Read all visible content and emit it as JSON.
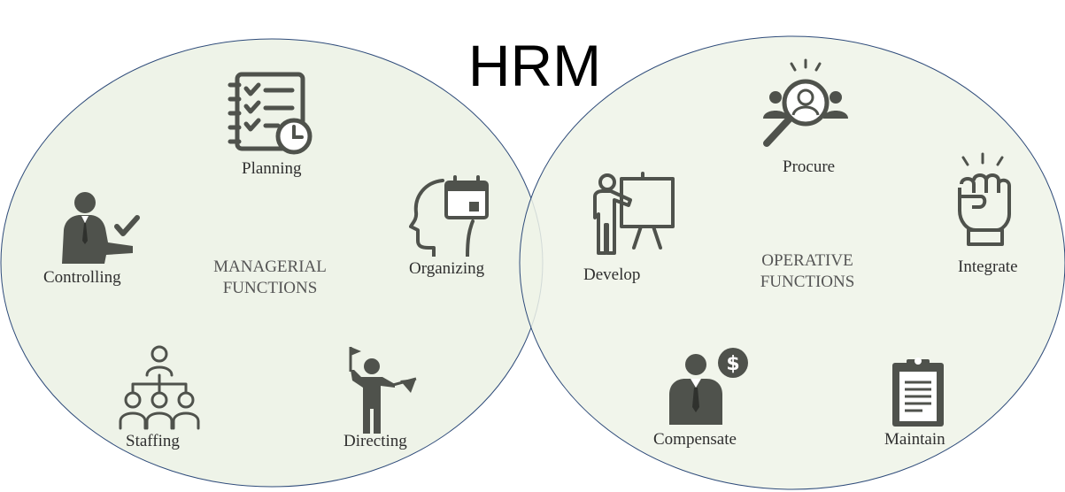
{
  "title": "HRM",
  "colors": {
    "fill": "#eef3e8",
    "stroke": "#2e4b7a",
    "icon": "#4f524c"
  },
  "left": {
    "center_lines": [
      "MANAGERIAL",
      "FUNCTIONS"
    ],
    "items": [
      {
        "label": "Planning",
        "icon": "checklist-clock-icon"
      },
      {
        "label": "Organizing",
        "icon": "head-calendar-icon"
      },
      {
        "label": "Controlling",
        "icon": "businessman-check-icon"
      },
      {
        "label": "Staffing",
        "icon": "org-chart-icon"
      },
      {
        "label": "Directing",
        "icon": "person-flag-icon"
      }
    ]
  },
  "right": {
    "center_lines": [
      "OPERATIVE",
      "FUNCTIONS"
    ],
    "items": [
      {
        "label": "Procure",
        "icon": "magnifier-people-icon"
      },
      {
        "label": "Integrate",
        "icon": "raised-fist-icon"
      },
      {
        "label": "Develop",
        "icon": "presenter-board-icon"
      },
      {
        "label": "Compensate",
        "icon": "person-dollar-icon"
      },
      {
        "label": "Maintain",
        "icon": "clipboard-icon"
      }
    ]
  }
}
